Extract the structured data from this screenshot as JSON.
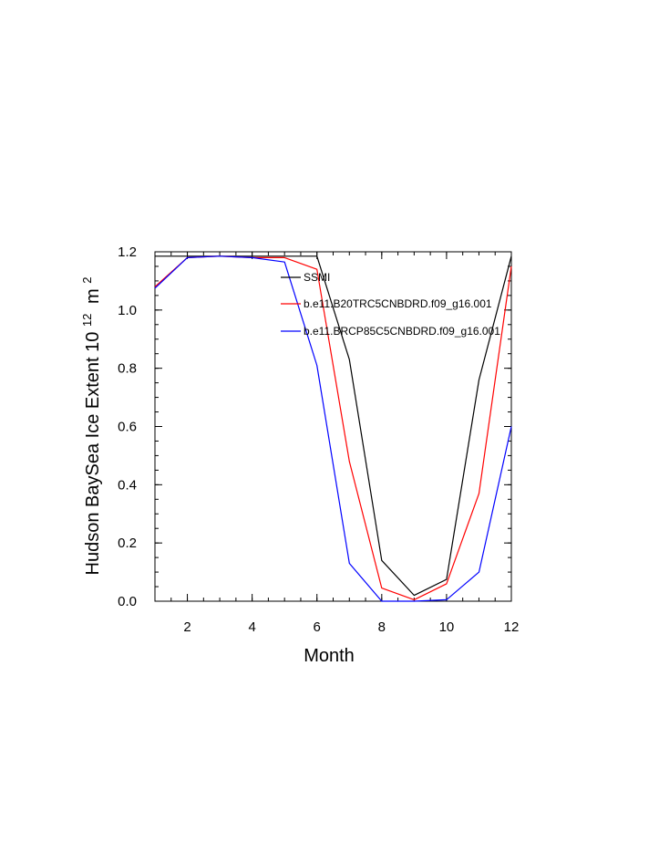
{
  "chart_data": {
    "type": "line",
    "xlabel": "Month",
    "ylabel": "Hudson BaySea Ice Extent 10",
    "ylabel_sup": "12",
    "ylabel_unit": "m",
    "ylabel_unit_sup": "2",
    "xlim": [
      1,
      12
    ],
    "ylim": [
      0,
      1.2
    ],
    "xticks": [
      2,
      4,
      6,
      8,
      10,
      12
    ],
    "xtick_labels": [
      "2",
      "4",
      "6",
      "8",
      "10",
      "12"
    ],
    "yticks": [
      0,
      0.2,
      0.4,
      0.6,
      0.8,
      1.0,
      1.2
    ],
    "ytick_labels": [
      "0.0",
      "0.2",
      "0.4",
      "0.6",
      "0.8",
      "1.0",
      "1.2"
    ],
    "grid": false,
    "legend_position": "top-right",
    "series": [
      {
        "name": "SSMI",
        "color": "#000000",
        "x": [
          1,
          2,
          3,
          4,
          5,
          6,
          7,
          8,
          9,
          10,
          11,
          12
        ],
        "y": [
          1.185,
          1.185,
          1.185,
          1.185,
          1.185,
          1.185,
          0.83,
          0.14,
          0.02,
          0.075,
          0.76,
          1.185
        ]
      },
      {
        "name": "b.e11.B20TRC5CNBDRD.f09_g16.001",
        "color": "#ff0000",
        "x": [
          1,
          2,
          3,
          4,
          5,
          6,
          7,
          8,
          9,
          10,
          11,
          12
        ],
        "y": [
          1.08,
          1.18,
          1.185,
          1.18,
          1.18,
          1.14,
          0.48,
          0.045,
          0.005,
          0.06,
          0.37,
          1.15
        ]
      },
      {
        "name": "b.e11.BRCP85C5CNBDRD.f09_g16.001",
        "color": "#0000ff",
        "x": [
          1,
          2,
          3,
          4,
          5,
          6,
          7,
          8,
          9,
          10,
          11,
          12
        ],
        "y": [
          1.075,
          1.18,
          1.185,
          1.18,
          1.165,
          0.81,
          0.13,
          0.0,
          0.0,
          0.005,
          0.1,
          0.6
        ]
      }
    ]
  }
}
